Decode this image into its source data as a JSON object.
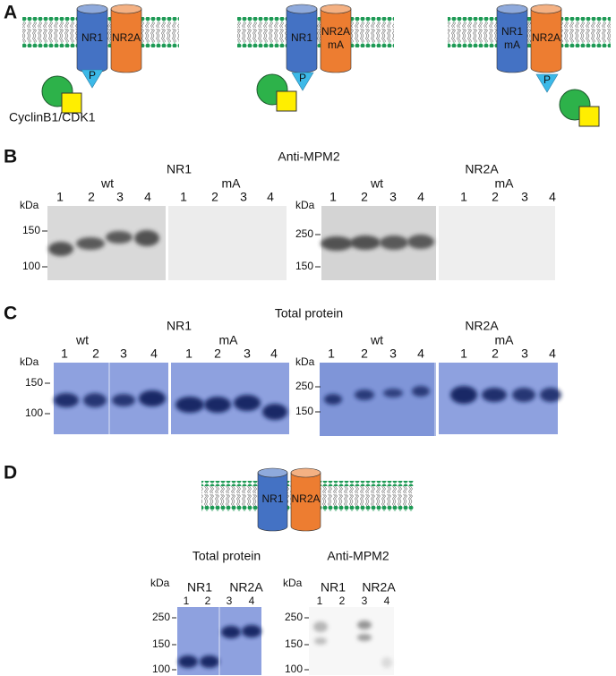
{
  "panel_a": {
    "label": "A",
    "diagrams": [
      {
        "subunits": [
          {
            "name": "NR1"
          },
          {
            "name": "NR2A"
          }
        ],
        "phospho": "P",
        "kinase": "CyclinB1/CDK1"
      },
      {
        "subunits": [
          {
            "name": "NR1"
          },
          {
            "name": "NR2A",
            "mutation": "mA"
          }
        ],
        "phospho": "P"
      },
      {
        "subunits": [
          {
            "name": "NR1",
            "mutation": "mA"
          },
          {
            "name": "NR2A"
          }
        ],
        "phospho": "P"
      }
    ]
  },
  "panel_b": {
    "label": "B",
    "title": "Anti-MPM2",
    "proteins": [
      {
        "name": "NR1",
        "unit": "kDa",
        "markers": [
          "150",
          "100"
        ],
        "groups": [
          {
            "name": "wt",
            "lanes": [
              "1",
              "2",
              "3",
              "4"
            ]
          },
          {
            "name": "mA",
            "lanes": [
              "1",
              "2",
              "3",
              "4"
            ]
          }
        ]
      },
      {
        "name": "NR2A",
        "unit": "kDa",
        "markers": [
          "250",
          "150"
        ],
        "groups": [
          {
            "name": "wt",
            "lanes": [
              "1",
              "2",
              "3",
              "4"
            ]
          },
          {
            "name": "mA",
            "lanes": [
              "1",
              "2",
              "3",
              "4"
            ]
          }
        ]
      }
    ]
  },
  "panel_c": {
    "label": "C",
    "title": "Total protein",
    "proteins": [
      {
        "name": "NR1",
        "unit": "kDa",
        "markers": [
          "150",
          "100"
        ],
        "groups": [
          {
            "name": "wt",
            "lanes": [
              "1",
              "2",
              "3",
              "4"
            ]
          },
          {
            "name": "mA",
            "lanes": [
              "1",
              "2",
              "3",
              "4"
            ]
          }
        ]
      },
      {
        "name": "NR2A",
        "unit": "kDa",
        "markers": [
          "250",
          "150"
        ],
        "groups": [
          {
            "name": "wt",
            "lanes": [
              "1",
              "2",
              "3",
              "4"
            ]
          },
          {
            "name": "mA",
            "lanes": [
              "1",
              "2",
              "3",
              "4"
            ]
          }
        ]
      }
    ]
  },
  "panel_d": {
    "label": "D",
    "diagram": {
      "subunits": [
        "NR1",
        "NR2A"
      ]
    },
    "blots": [
      {
        "title": "Total protein",
        "unit": "kDa",
        "markers": [
          "250",
          "150",
          "100"
        ],
        "groups": [
          {
            "name": "NR1",
            "lanes": [
              "1",
              "2"
            ]
          },
          {
            "name": "NR2A",
            "lanes": [
              "3",
              "4"
            ]
          }
        ]
      },
      {
        "title": "Anti-MPM2",
        "unit": "kDa",
        "markers": [
          "250",
          "150",
          "100"
        ],
        "groups": [
          {
            "name": "NR1",
            "lanes": [
              "1",
              "2"
            ]
          },
          {
            "name": "NR2A",
            "lanes": [
              "3",
              "4"
            ]
          }
        ]
      }
    ]
  }
}
